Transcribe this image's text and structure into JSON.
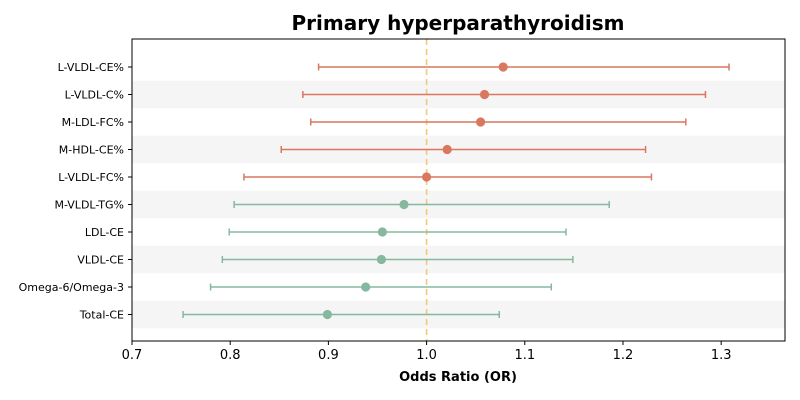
{
  "chart_data": {
    "type": "scatter",
    "title": "Primary hyperparathyroidism",
    "xlabel": "Odds Ratio (OR)",
    "ylabel": "",
    "xlim": [
      0.7,
      1.365
    ],
    "xticks": [
      "0.7",
      "0.8",
      "0.9",
      "1.0",
      "1.1",
      "1.2",
      "1.3"
    ],
    "xtick_values": [
      0.7,
      0.8,
      0.9,
      1.0,
      1.1,
      1.2,
      1.3
    ],
    "reference_line": 1.0,
    "reference_color": "#f2c97b",
    "grid": false,
    "alternating_row_shading": true,
    "colors": {
      "positive": "#d9775f",
      "negative": "#86b8a0",
      "stripe": "#f5f5f5"
    },
    "rows": [
      {
        "label": "L-VLDL-CE%",
        "or": 1.078,
        "lower": 0.89,
        "upper": 1.308,
        "group": "positive"
      },
      {
        "label": "L-VLDL-C%",
        "or": 1.059,
        "lower": 0.874,
        "upper": 1.284,
        "group": "positive"
      },
      {
        "label": "M-LDL-FC%",
        "or": 1.055,
        "lower": 0.882,
        "upper": 1.264,
        "group": "positive"
      },
      {
        "label": "M-HDL-CE%",
        "or": 1.021,
        "lower": 0.852,
        "upper": 1.223,
        "group": "positive"
      },
      {
        "label": "L-VLDL-FC%",
        "or": 1.0,
        "lower": 0.814,
        "upper": 1.229,
        "group": "positive"
      },
      {
        "label": "M-VLDL-TG%",
        "or": 0.977,
        "lower": 0.804,
        "upper": 1.186,
        "group": "negative"
      },
      {
        "label": "LDL-CE",
        "or": 0.955,
        "lower": 0.799,
        "upper": 1.142,
        "group": "negative"
      },
      {
        "label": "VLDL-CE",
        "or": 0.954,
        "lower": 0.792,
        "upper": 1.149,
        "group": "negative"
      },
      {
        "label": "Omega-6/Omega-3",
        "or": 0.938,
        "lower": 0.78,
        "upper": 1.127,
        "group": "negative"
      },
      {
        "label": "Total-CE",
        "or": 0.899,
        "lower": 0.752,
        "upper": 1.074,
        "group": "negative"
      }
    ]
  }
}
